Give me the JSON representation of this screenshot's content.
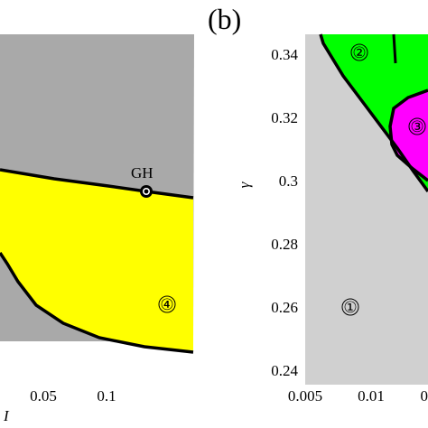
{
  "chart_data": [
    {
      "type": "area",
      "panel_label": "",
      "xlabel": "I",
      "x_ticks": [
        "0.05",
        "0.1"
      ],
      "point_label": "GH",
      "region_labels": [
        "④"
      ],
      "colors": {
        "background_region": "#a9a9a9",
        "region4": "#ffff00",
        "boundary": "#000000"
      }
    },
    {
      "type": "area",
      "panel_label": "(b)",
      "ylabel": "γ",
      "x_ticks": [
        "0.005",
        "0.01",
        "0"
      ],
      "y_ticks": [
        "0.34",
        "0.32",
        "0.3",
        "0.28",
        "0.26",
        "0.24"
      ],
      "xlim": [
        0.005,
        0.0148
      ],
      "ylim": [
        0.238,
        0.346
      ],
      "region_labels": [
        "①",
        "②",
        "③"
      ],
      "colors": {
        "region1": "#d0d0d0",
        "region2": "#00ff00",
        "region3": "#ff00ff",
        "boundary": "#000000"
      }
    }
  ]
}
